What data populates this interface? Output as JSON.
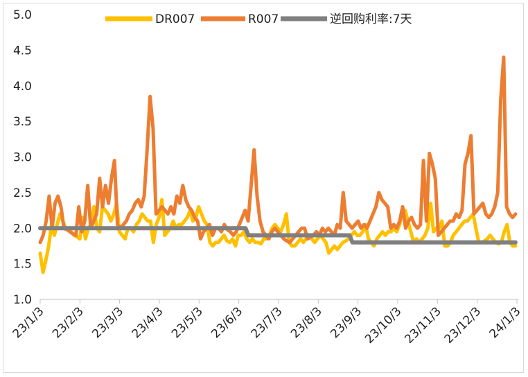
{
  "chart_data": {
    "type": "line",
    "title": "",
    "xlabel": "",
    "ylabel": "",
    "ylim": [
      1.0,
      5.0
    ],
    "yticks": [
      "1.0",
      "1.5",
      "2.0",
      "2.5",
      "3.0",
      "3.5",
      "4.0",
      "4.5",
      "5.0"
    ],
    "xticks": [
      "23/1/3",
      "23/2/3",
      "23/3/3",
      "23/4/3",
      "23/5/3",
      "23/6/3",
      "23/7/3",
      "23/8/3",
      "23/9/3",
      "23/10/3",
      "23/11/3",
      "23/12/3",
      "24/1/3"
    ],
    "legend_position": "top",
    "colors": {
      "DR007": "#FFC000",
      "R007": "#ED7D31",
      "policy": "#7F7F7F"
    },
    "series": [
      {
        "name": "DR007",
        "values": [
          1.65,
          1.38,
          1.55,
          1.75,
          2.05,
          1.9,
          2.05,
          2.2,
          2.1,
          2.0,
          1.98,
          1.95,
          1.9,
          1.88,
          1.85,
          2.15,
          1.85,
          2.0,
          2.05,
          2.3,
          2.0,
          1.95,
          2.3,
          2.25,
          2.2,
          2.1,
          2.2,
          2.35,
          1.95,
          1.9,
          1.85,
          2.0,
          2.0,
          1.95,
          2.05,
          2.1,
          2.2,
          2.15,
          2.1,
          2.1,
          1.8,
          2.05,
          2.15,
          2.4,
          1.9,
          1.95,
          2.0,
          2.1,
          2.0,
          2.05,
          2.05,
          2.1,
          2.15,
          2.25,
          2.1,
          2.15,
          2.3,
          2.2,
          2.1,
          2.05,
          1.8,
          1.75,
          1.8,
          1.8,
          1.85,
          1.9,
          1.82,
          1.8,
          1.85,
          1.75,
          1.9,
          1.9,
          1.95,
          1.85,
          1.8,
          1.85,
          1.8,
          1.8,
          1.78,
          1.85,
          1.85,
          1.9,
          2.0,
          2.05,
          2.0,
          1.95,
          2.05,
          2.2,
          1.8,
          1.75,
          1.75,
          1.8,
          1.85,
          1.8,
          1.85,
          1.9,
          1.85,
          1.8,
          1.85,
          1.9,
          1.85,
          1.8,
          1.65,
          1.7,
          1.75,
          1.7,
          1.75,
          1.8,
          1.82,
          1.85,
          1.9,
          1.95,
          1.9,
          1.9,
          1.95,
          2.05,
          1.85,
          1.8,
          1.75,
          1.85,
          1.9,
          1.95,
          1.9,
          1.95,
          1.95,
          2.0,
          1.95,
          2.05,
          2.2,
          2.25,
          2.1,
          1.95,
          1.8,
          1.85,
          1.8,
          1.85,
          1.9,
          2.0,
          2.35,
          1.95,
          2.0,
          2.0,
          2.1,
          1.75,
          1.75,
          1.8,
          1.9,
          1.95,
          2.0,
          2.05,
          2.1,
          2.1,
          2.15,
          2.2,
          2.0,
          1.8,
          1.8,
          1.82,
          1.85,
          1.9,
          1.85,
          1.8,
          1.78,
          1.8,
          1.95,
          2.05,
          1.8,
          1.75,
          1.75
        ]
      },
      {
        "name": "R007",
        "values": [
          1.8,
          1.9,
          2.1,
          2.45,
          2.0,
          2.35,
          2.45,
          2.3,
          2.0,
          1.98,
          1.95,
          1.92,
          1.9,
          2.3,
          1.95,
          2.1,
          2.6,
          2.0,
          2.1,
          2.2,
          2.7,
          2.3,
          2.6,
          2.35,
          2.7,
          2.95,
          2.05,
          2.0,
          2.05,
          2.1,
          2.2,
          2.25,
          2.35,
          2.4,
          2.3,
          2.45,
          3.1,
          3.85,
          3.4,
          2.2,
          2.25,
          2.3,
          2.25,
          2.2,
          2.3,
          2.2,
          2.45,
          2.35,
          2.6,
          2.4,
          2.3,
          2.25,
          2.15,
          2.1,
          1.85,
          1.95,
          2.0,
          2.05,
          1.9,
          2.0,
          2.0,
          1.95,
          2.05,
          1.98,
          1.95,
          1.9,
          1.95,
          2.05,
          2.15,
          2.25,
          2.1,
          2.6,
          3.1,
          2.45,
          2.1,
          1.95,
          1.9,
          1.85,
          1.95,
          2.0,
          1.95,
          1.9,
          1.85,
          1.82,
          1.8,
          1.85,
          1.9,
          1.95,
          2.0,
          2.0,
          1.85,
          1.88,
          1.9,
          1.95,
          1.9,
          2.0,
          1.95,
          2.0,
          1.95,
          1.9,
          2.05,
          2.0,
          2.5,
          2.1,
          2.05,
          2.0,
          2.05,
          2.1,
          2.0,
          2.05,
          2.0,
          2.1,
          2.2,
          2.3,
          2.5,
          2.4,
          2.35,
          2.3,
          2.0,
          2.05,
          2.0,
          2.1,
          2.3,
          2.0,
          2.1,
          2.15,
          2.05,
          2.0,
          2.05,
          2.95,
          2.1,
          3.05,
          2.9,
          2.7,
          1.9,
          1.95,
          2.0,
          2.05,
          2.1,
          2.1,
          2.2,
          2.15,
          2.25,
          2.9,
          3.05,
          3.3,
          2.2,
          2.25,
          2.3,
          2.35,
          2.2,
          2.15,
          2.2,
          2.3,
          2.5,
          3.8,
          4.4,
          2.3,
          2.2,
          2.15,
          2.2
        ]
      },
      {
        "name": "逆回购利率:7天",
        "values": [
          2.0,
          2.0,
          2.0,
          2.0,
          2.0,
          2.0,
          2.0,
          2.0,
          2.0,
          2.0,
          2.0,
          2.0,
          2.0,
          2.0,
          2.0,
          2.0,
          2.0,
          2.0,
          2.0,
          2.0,
          2.0,
          2.0,
          2.0,
          2.0,
          2.0,
          2.0,
          2.0,
          2.0,
          2.0,
          2.0,
          2.0,
          2.0,
          2.0,
          2.0,
          2.0,
          2.0,
          2.0,
          2.0,
          2.0,
          2.0,
          2.0,
          2.0,
          2.0,
          2.0,
          2.0,
          2.0,
          2.0,
          2.0,
          2.0,
          2.0,
          2.0,
          2.0,
          2.0,
          2.0,
          2.0,
          2.0,
          2.0,
          2.0,
          2.0,
          2.0,
          2.0,
          2.0,
          2.0,
          2.0,
          2.0,
          2.0,
          2.0,
          2.0,
          2.0,
          2.0,
          2.0,
          2.0,
          2.0,
          2.0,
          1.9,
          1.9,
          1.9,
          1.9,
          1.9,
          1.9,
          1.9,
          1.9,
          1.9,
          1.9,
          1.9,
          1.9,
          1.9,
          1.9,
          1.9,
          1.9,
          1.9,
          1.9,
          1.9,
          1.9,
          1.9,
          1.9,
          1.9,
          1.9,
          1.9,
          1.9,
          1.9,
          1.9,
          1.9,
          1.9,
          1.9,
          1.9,
          1.9,
          1.9,
          1.9,
          1.9,
          1.9,
          1.8,
          1.8,
          1.8,
          1.8,
          1.8,
          1.8,
          1.8,
          1.8,
          1.8,
          1.8,
          1.8,
          1.8,
          1.8,
          1.8,
          1.8,
          1.8,
          1.8,
          1.8,
          1.8,
          1.8,
          1.8,
          1.8,
          1.8,
          1.8,
          1.8,
          1.8,
          1.8,
          1.8,
          1.8,
          1.8,
          1.8,
          1.8,
          1.8,
          1.8,
          1.8,
          1.8,
          1.8,
          1.8,
          1.8,
          1.8,
          1.8,
          1.8,
          1.8,
          1.8,
          1.8,
          1.8,
          1.8,
          1.8,
          1.8,
          1.8,
          1.8,
          1.8,
          1.8,
          1.8,
          1.8,
          1.8,
          1.8,
          1.8,
          1.8
        ]
      }
    ]
  }
}
